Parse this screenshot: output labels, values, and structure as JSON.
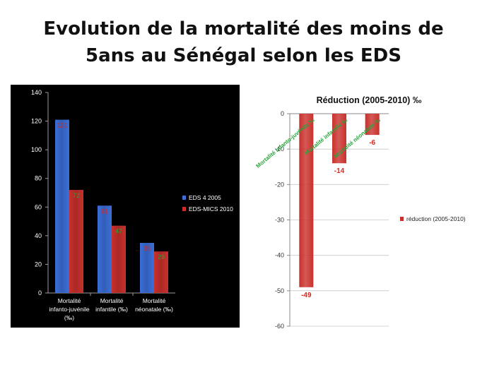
{
  "slide": {
    "title_line1": "Evolution de la mortalité des moins de",
    "title_line2": "5ans au Sénégal selon les EDS"
  },
  "colors": {
    "blue": "#3b6fd8",
    "red": "#c9302c",
    "label_red": "#e0241b",
    "label_green": "#28a53a",
    "dark_bg": "#000000"
  },
  "chart_data": [
    {
      "type": "bar",
      "categories": [
        [
          "Mortalité",
          "infanto-juvénile",
          "(‰)"
        ],
        [
          "Mortalité",
          "infantile (‰)"
        ],
        [
          "Mortalité",
          "néonatale (‰)"
        ]
      ],
      "series": [
        {
          "name": "EDS 4 2005",
          "values": [
            121,
            61,
            35
          ],
          "color": "#3b6fd8",
          "label_color": "#e0241b"
        },
        {
          "name": "EDS-MICS 2010",
          "values": [
            72,
            47,
            29
          ],
          "color": "#c9302c",
          "label_color": "#28a53a"
        }
      ],
      "ylim": [
        0,
        140
      ],
      "yticks": [
        0,
        20,
        40,
        60,
        80,
        100,
        120,
        140
      ],
      "background": "dark",
      "grid": false,
      "legend": "right"
    },
    {
      "type": "bar",
      "title": "Réduction (2005-2010)  ‰",
      "categories": [
        "Mortalité infanto-juvénile  ‰",
        "Mortalité infantile ‰",
        "Mortalité néonatale ‰"
      ],
      "series": [
        {
          "name": "réduction (2005-2010)",
          "values": [
            -49,
            -14,
            -6
          ],
          "color": "#c9302c"
        }
      ],
      "ylim": [
        -60,
        0
      ],
      "yticks": [
        0,
        -10,
        -20,
        -30,
        -40,
        -50,
        -60
      ],
      "grid": true,
      "legend": "right"
    }
  ]
}
